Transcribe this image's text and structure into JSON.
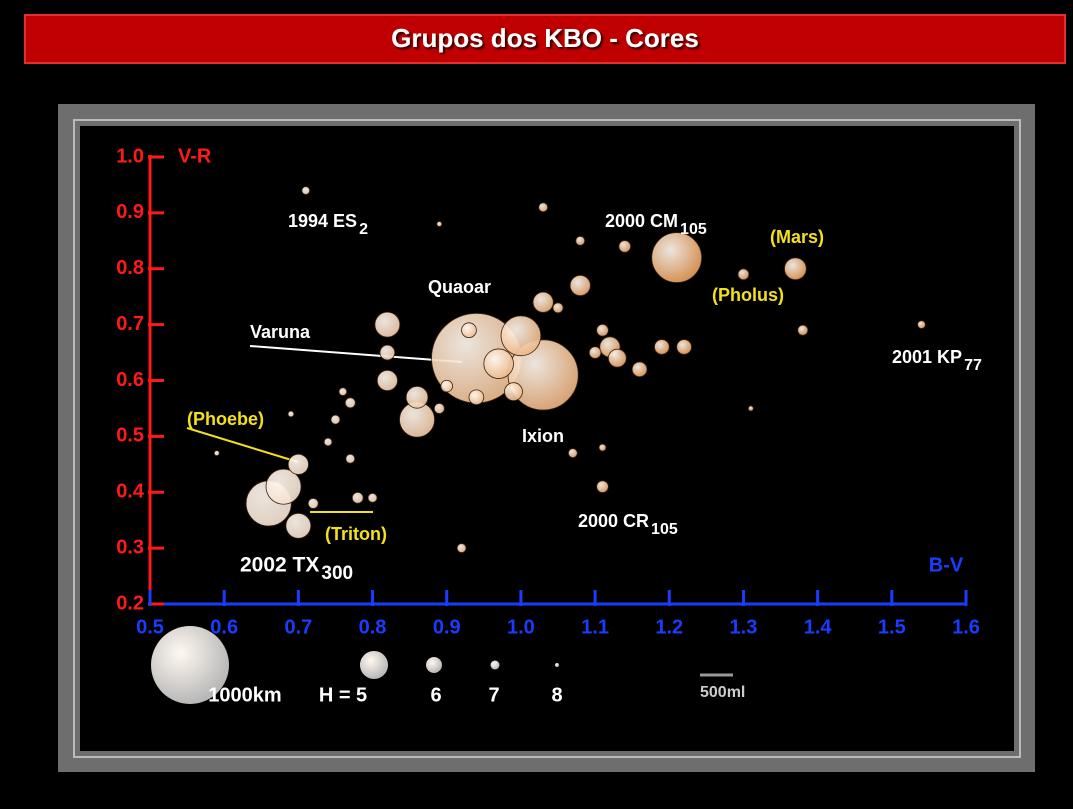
{
  "chart_data": {
    "type": "scatter",
    "title": "Grupos dos KBO - Cores",
    "xlabel": "B-V",
    "ylabel": "V-R",
    "xlim": [
      0.5,
      1.6
    ],
    "ylim": [
      0.2,
      1.0
    ],
    "xticks": [
      0.5,
      0.6,
      0.7,
      0.8,
      0.9,
      {
        "value": 1,
        "label": "1.0"
      },
      1.1,
      1.2,
      1.3,
      1.4,
      1.5,
      1.6
    ],
    "yticks": [
      0.2,
      0.3,
      0.4,
      0.5,
      0.6,
      0.7,
      0.8,
      0.9,
      {
        "value": 1,
        "label": "1.0"
      }
    ],
    "x": [
      0.94,
      1.03,
      1.21,
      0.66,
      0.68,
      0.7,
      0.86,
      1.0,
      0.97,
      0.82,
      1.08,
      1.37,
      0.82,
      0.82,
      0.7,
      0.86,
      1.03,
      1.12,
      1.22,
      1.13,
      1.16,
      1.11,
      1.14,
      1.3,
      0.71,
      0.89,
      1.03,
      1.08,
      1.38,
      1.54,
      1.31,
      1.11,
      1.07,
      1.11,
      0.92,
      0.59,
      0.78,
      0.8,
      0.72,
      0.76,
      0.77,
      0.75,
      0.77,
      0.74,
      0.69,
      0.89,
      0.93,
      1.05,
      1.1,
      1.19,
      0.99,
      0.94,
      0.9
    ],
    "values": [
      0.64,
      0.61,
      0.82,
      0.38,
      0.41,
      0.34,
      0.53,
      0.68,
      0.63,
      0.7,
      0.77,
      0.8,
      0.6,
      0.65,
      0.45,
      0.57,
      0.74,
      0.66,
      0.66,
      0.64,
      0.62,
      0.69,
      0.84,
      0.79,
      0.94,
      0.88,
      0.91,
      0.85,
      0.69,
      0.7,
      0.55,
      0.48,
      0.47,
      0.41,
      0.3,
      0.47,
      0.39,
      0.39,
      0.38,
      0.58,
      0.56,
      0.53,
      0.46,
      0.49,
      0.54,
      0.55,
      0.69,
      0.73,
      0.65,
      0.66,
      0.58,
      0.57,
      0.59
    ],
    "sizes": [
      1150,
      900,
      640,
      580,
      450,
      320,
      450,
      510,
      380,
      320,
      260,
      280,
      260,
      190,
      260,
      280,
      260,
      260,
      190,
      230,
      190,
      150,
      150,
      140,
      100,
      65,
      115,
      115,
      130,
      100,
      65,
      90,
      115,
      150,
      115,
      65,
      140,
      115,
      130,
      100,
      130,
      115,
      115,
      100,
      75,
      130,
      190,
      130,
      150,
      190,
      230,
      190,
      150
    ],
    "annotations": [
      {
        "text": "1994 ES",
        "sub": "2",
        "color": "#ffffff"
      },
      {
        "text": "2000 CM",
        "sub": "105",
        "color": "#ffffff"
      },
      {
        "text": "(Mars)",
        "color": "#f2e01a"
      },
      {
        "text": "(Pholus)",
        "color": "#f2e01a"
      },
      {
        "text": "Quaoar",
        "color": "#ffffff"
      },
      {
        "text": "Varuna",
        "color": "#ffffff"
      },
      {
        "text": "2001 KP",
        "sub": "77",
        "color": "#ffffff"
      },
      {
        "text": "(Phoebe)",
        "color": "#f2e01a"
      },
      {
        "text": "Ixion",
        "color": "#ffffff"
      },
      {
        "text": "2000 CR",
        "sub": "105",
        "color": "#ffffff"
      },
      {
        "text": "(Triton)",
        "color": "#f2e01a"
      },
      {
        "text": "2002 TX",
        "sub": "300",
        "color": "#ffffff"
      }
    ],
    "legend": [
      {
        "label": "1000km",
        "size": 1000
      },
      {
        "label": "H = 5",
        "size": 360
      },
      {
        "label": "6",
        "size": 205
      },
      {
        "label": "7",
        "size": 115
      },
      {
        "label": "8",
        "size": 50
      }
    ],
    "scale_label": "500ml",
    "ylabel_color": "#ff1a1a",
    "xlabel_color": "#1a3cff"
  }
}
